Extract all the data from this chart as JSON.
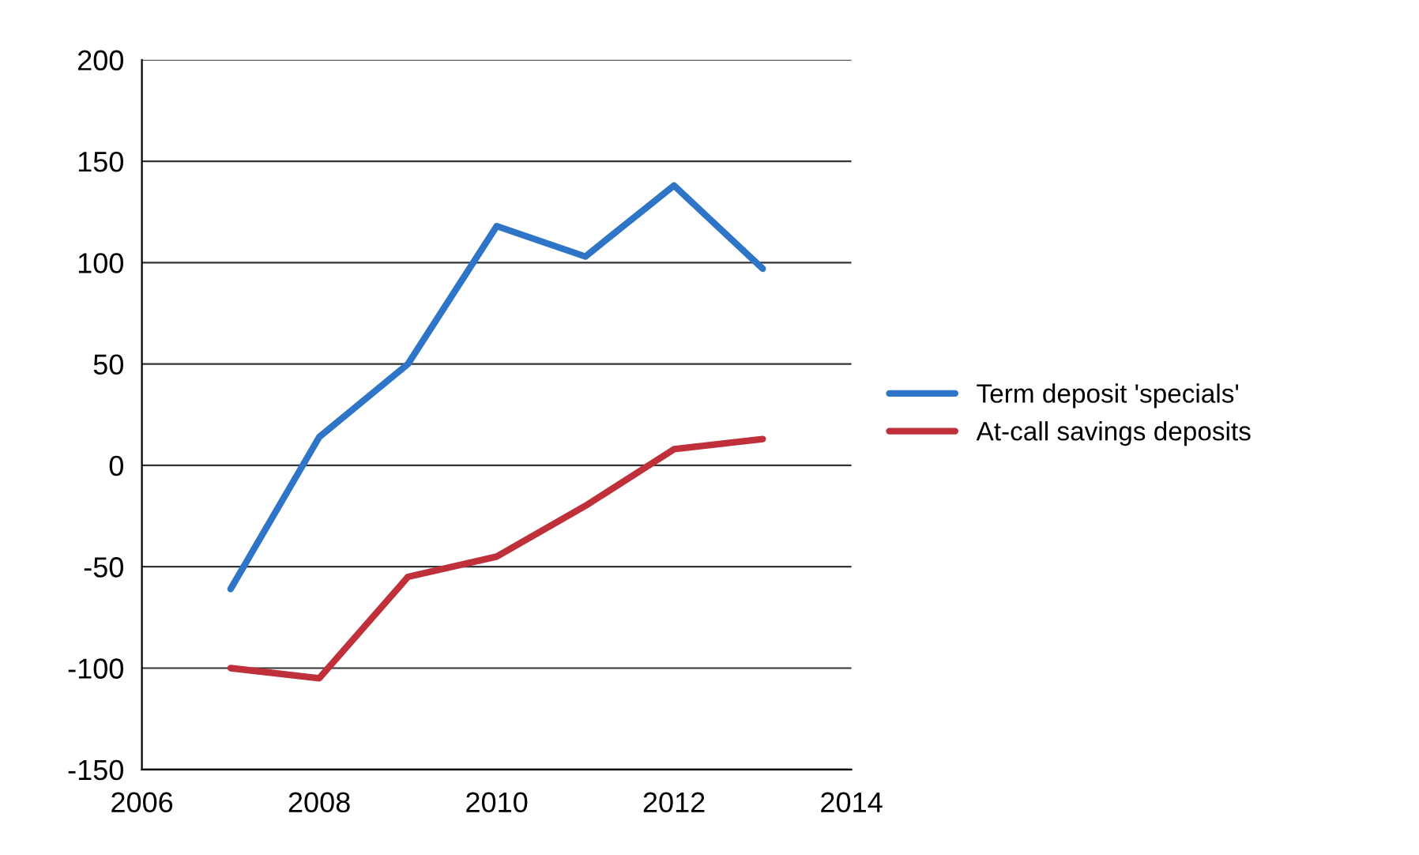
{
  "chart_data": {
    "type": "line",
    "x": [
      2007,
      2008,
      2009,
      2010,
      2011,
      2012,
      2013
    ],
    "series": [
      {
        "name": "Term deposit 'specials'",
        "color": "#2e75c8",
        "values": [
          -61,
          14,
          50,
          118,
          103,
          138,
          97
        ]
      },
      {
        "name": "At-call savings deposits",
        "color": "#c0303a",
        "values": [
          -100,
          -105,
          -55,
          -45,
          -20,
          8,
          13
        ]
      }
    ],
    "xlim": [
      2006,
      2014
    ],
    "xticks": [
      2006,
      2008,
      2010,
      2012,
      2014
    ],
    "ylim": [
      -150,
      200
    ],
    "yticks": [
      -150,
      -100,
      -50,
      0,
      50,
      100,
      150,
      200
    ],
    "grid": "y",
    "legend": "right",
    "marker": "none",
    "line_style": "solid"
  }
}
